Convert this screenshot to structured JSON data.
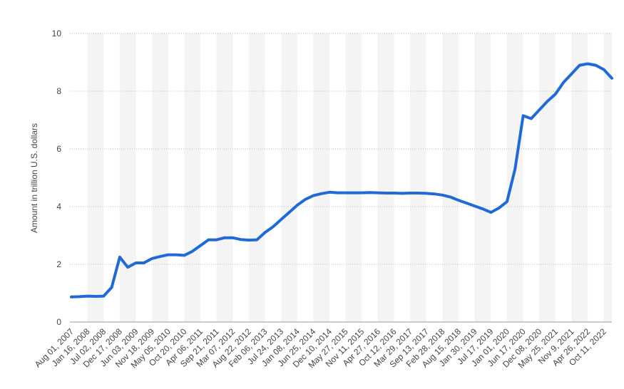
{
  "chart_data": {
    "type": "line",
    "y_label": "Amount in trillion U.S. dollars",
    "categories": [
      "Aug 01, 2007",
      null,
      "Jan 16, 2008",
      null,
      "Jul 02, 2008",
      null,
      "Dec 17, 2008",
      null,
      "Jun 03, 2009",
      null,
      "Nov 18, 2009",
      null,
      "May 05, 2010",
      null,
      "Oct 20, 2010",
      null,
      "Apr 06, 2011",
      null,
      "Sep 21, 2011",
      null,
      "Mar 07, 2012",
      null,
      "Aug 22, 2012",
      null,
      "Feb 06, 2013",
      null,
      "Jul 24, 2013",
      null,
      "Jan 08, 2014",
      null,
      "Jun 25, 2014",
      null,
      "Dec 10, 2014",
      null,
      "May 27, 2015",
      null,
      "Nov 11, 2015",
      null,
      "Apr 27, 2016",
      null,
      "Oct 12, 2016",
      null,
      "Mar 29, 2017",
      null,
      "Sep 13, 2017",
      null,
      "Feb 28, 2018",
      null,
      "Aug 15, 2018",
      null,
      "Jan 30, 2019",
      null,
      "Jul 17, 2019",
      null,
      "Jan 01, 2020",
      null,
      "Jun 17, 2020",
      null,
      "Dec 08, 2020",
      null,
      "May 25, 2021",
      null,
      "Nov 9, 2021",
      null,
      "Apr 26, 2022",
      null,
      "Oct 11, 2022",
      null
    ],
    "values": [
      0.87,
      0.88,
      0.9,
      0.89,
      0.9,
      1.2,
      2.25,
      1.9,
      2.05,
      2.05,
      2.2,
      2.27,
      2.33,
      2.33,
      2.31,
      2.45,
      2.65,
      2.85,
      2.85,
      2.92,
      2.92,
      2.86,
      2.84,
      2.85,
      3.1,
      3.3,
      3.55,
      3.8,
      4.05,
      4.25,
      4.38,
      4.45,
      4.5,
      4.48,
      4.48,
      4.48,
      4.48,
      4.49,
      4.48,
      4.47,
      4.47,
      4.46,
      4.47,
      4.47,
      4.46,
      4.44,
      4.4,
      4.33,
      4.22,
      4.12,
      4.02,
      3.92,
      3.8,
      3.95,
      4.17,
      5.3,
      7.15,
      7.05,
      7.35,
      7.65,
      7.9,
      8.3,
      8.6,
      8.9,
      8.95,
      8.9,
      8.75,
      8.45
    ],
    "color": "#1f6ad8",
    "ylim": [
      0,
      10
    ],
    "yticks": [
      0,
      2,
      4,
      6,
      8,
      10
    ],
    "grid": true
  }
}
